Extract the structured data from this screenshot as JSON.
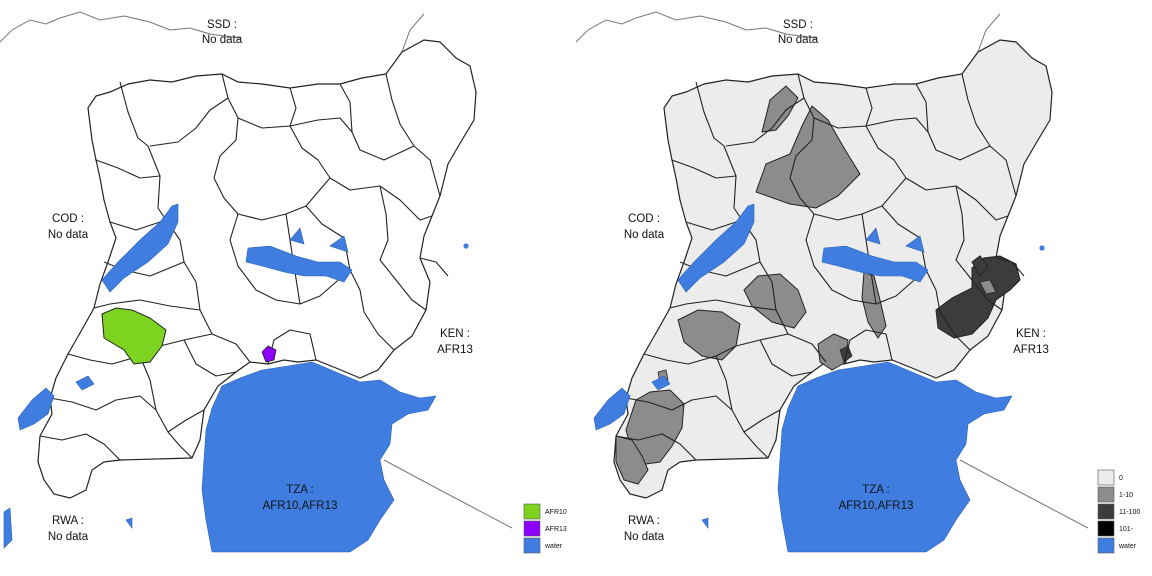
{
  "maps": [
    {
      "name": "left",
      "labels": {
        "ssd": [
          "SSD :",
          "No data"
        ],
        "cod": [
          "COD :",
          "No data"
        ],
        "ken": [
          "KEN :",
          "AFR13"
        ],
        "tza": [
          "TZA :",
          "AFR10,AFR13"
        ],
        "rwa": [
          "RWA :",
          "No data"
        ]
      },
      "legend": [
        {
          "label": "AFR10",
          "color": "#7ed321"
        },
        {
          "label": "AFR13",
          "color": "#8b00ff"
        },
        {
          "label": "water",
          "color": "#3f7ee0"
        }
      ]
    },
    {
      "name": "right",
      "labels": {
        "ssd": [
          "SSD :",
          "No data"
        ],
        "cod": [
          "COD :",
          "No data"
        ],
        "ken": [
          "KEN :",
          "AFR13"
        ],
        "tza": [
          "TZA :",
          "AFR10,AFR13"
        ],
        "rwa": [
          "RWA :",
          "No data"
        ]
      },
      "legend": [
        {
          "label": "0",
          "color": "#ececec"
        },
        {
          "label": "1-10",
          "color": "#8c8c8c"
        },
        {
          "label": "11-100",
          "color": "#3c3c3c"
        },
        {
          "label": "101-",
          "color": "#000000"
        },
        {
          "label": "water",
          "color": "#3f7ee0"
        }
      ]
    }
  ],
  "colors": {
    "water": "#3f7ee0",
    "district_default_left": "#ffffff",
    "district_default_right": "#ececec",
    "afr10": "#7ed321",
    "afr13": "#8b00ff",
    "mid_gray": "#8c8c8c",
    "dark_gray": "#3c3c3c"
  }
}
